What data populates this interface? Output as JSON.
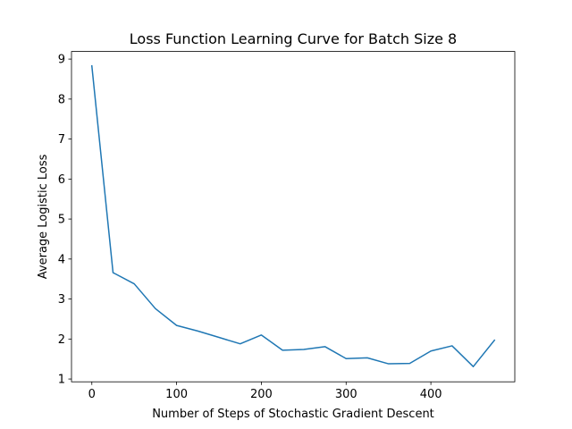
{
  "chart_data": {
    "type": "line",
    "title": "Loss Function Learning Curve for Batch Size 8",
    "xlabel": "Number of Steps of Stochastic Gradient Descent",
    "ylabel": "Average Logistic Loss",
    "xlim": [
      -24,
      499
    ],
    "ylim": [
      0.93,
      9.19
    ],
    "xticks": [
      0,
      100,
      200,
      300,
      400
    ],
    "yticks": [
      1,
      2,
      3,
      4,
      5,
      6,
      7,
      8,
      9
    ],
    "grid": false,
    "series": [
      {
        "color": "#1f77b4",
        "x": [
          0,
          25,
          50,
          75,
          100,
          125,
          150,
          175,
          200,
          225,
          250,
          275,
          300,
          325,
          350,
          375,
          400,
          425,
          450,
          475
        ],
        "y": [
          8.83,
          3.66,
          3.38,
          2.76,
          2.34,
          2.2,
          2.04,
          1.88,
          2.1,
          1.72,
          1.74,
          1.81,
          1.51,
          1.53,
          1.38,
          1.39,
          1.7,
          1.83,
          1.31,
          1.97
        ]
      }
    ]
  }
}
